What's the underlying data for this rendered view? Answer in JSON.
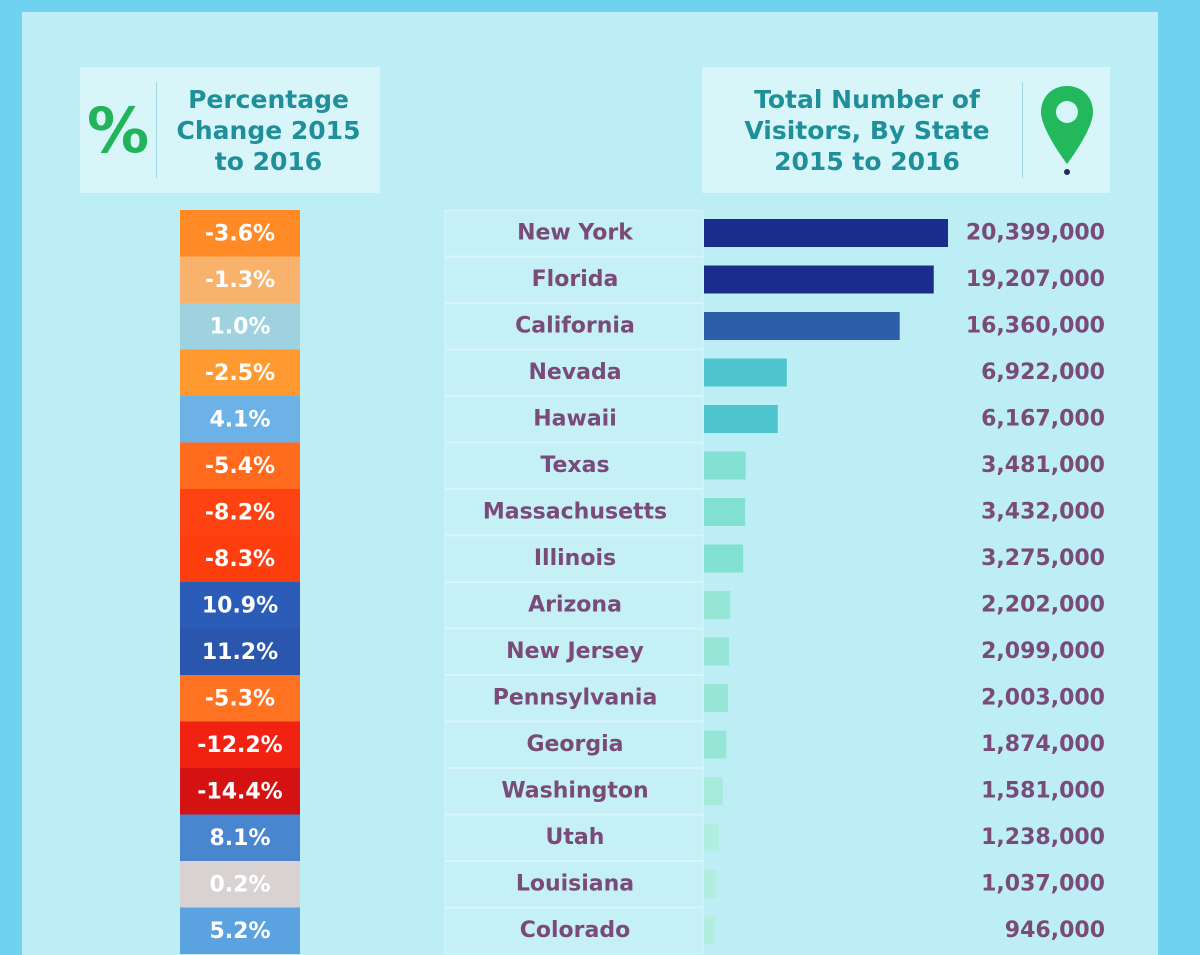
{
  "chart_data": [
    {
      "type": "cells",
      "icon": "%",
      "title": "Percentage Change 2015 to 2016",
      "values": [
        -3.6,
        -1.3,
        1.0,
        -2.5,
        4.1,
        -5.4,
        -8.2,
        -8.3,
        10.9,
        11.2,
        -5.3,
        -12.2,
        -14.4,
        8.1,
        0.2,
        5.2
      ],
      "value_labels": [
        "-3.6%",
        "-1.3%",
        "1.0%",
        "-2.5%",
        "4.1%",
        "-5.4%",
        "-8.2%",
        "-8.3%",
        "10.9%",
        "11.2%",
        "-5.3%",
        "-12.2%",
        "-14.4%",
        "8.1%",
        "0.2%",
        "5.2%"
      ],
      "colors": [
        "#ff8a26",
        "#f9b26c",
        "#9fd2df",
        "#ff9a30",
        "#6cb2e6",
        "#ff6a1c",
        "#ff4212",
        "#ff3e10",
        "#2a5cb8",
        "#2a56ae",
        "#ff7222",
        "#f22212",
        "#d41212",
        "#4a86d0",
        "#d8d2d2",
        "#5aa2e0"
      ]
    },
    {
      "type": "bar",
      "title": "Total Number of Visitors, By State 2015 to 2016",
      "categories": [
        "New York",
        "Florida",
        "California",
        "Nevada",
        "Hawaii",
        "Texas",
        "Massachusetts",
        "Illinois",
        "Arizona",
        "New Jersey",
        "Pennsylvania",
        "Georgia",
        "Washington",
        "Utah",
        "Louisiana",
        "Colorado"
      ],
      "values": [
        20399000,
        19207000,
        16360000,
        6922000,
        6167000,
        3481000,
        3432000,
        3275000,
        2202000,
        2099000,
        2003000,
        1874000,
        1581000,
        1238000,
        1037000,
        946000
      ],
      "value_labels": [
        "20,399,000",
        "19,207,000",
        "16,360,000",
        "6,922,000",
        "6,167,000",
        "3,481,000",
        "3,432,000",
        "3,275,000",
        "2,202,000",
        "2,099,000",
        "2,003,000",
        "1,874,000",
        "1,581,000",
        "1,238,000",
        "1,037,000",
        "946,000"
      ],
      "colors": [
        "#1b2d8c",
        "#1b2d8c",
        "#2b5fa8",
        "#4ec4cc",
        "#4ec4cc",
        "#82e0d2",
        "#82e0d2",
        "#82e0d2",
        "#96e6d8",
        "#96e6d8",
        "#96e6d8",
        "#96e6d8",
        "#a6eadc",
        "#b2eee0",
        "#b2eee0",
        "#b2eee0"
      ]
    }
  ]
}
